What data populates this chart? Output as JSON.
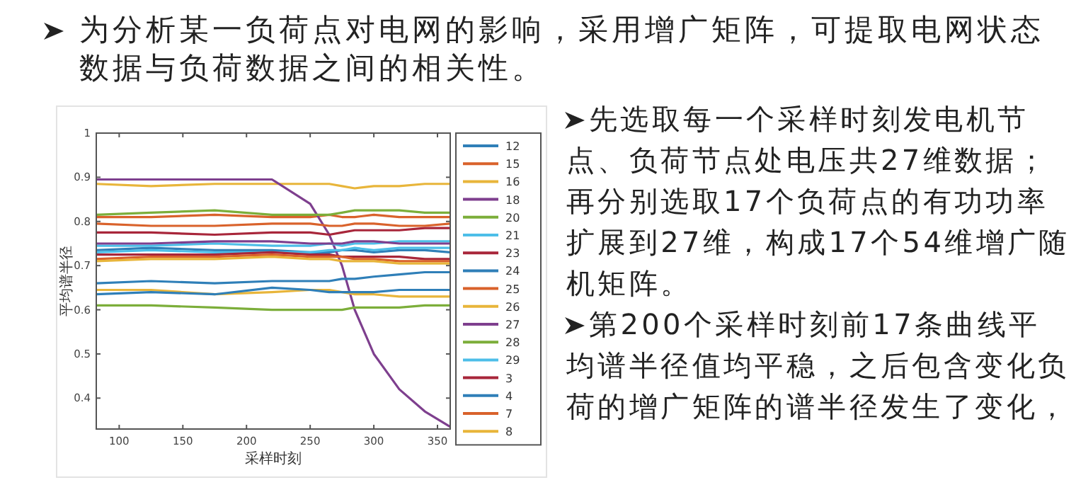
{
  "chart_data": {
    "type": "line",
    "title": "为分析某一负荷点对电网的影响，采用增广矩阵，可提取电网状态数据与负荷数据之间的相关性。",
    "annotations": [
      "先选取每一个采样时刻发电机节点、负荷节点处电压共27维数据；再分别选取17个负荷点的有功功率扩展到27维，构成17个54维增广随机矩阵。",
      "第200个采样时刻前17条曲线平均谱半径值均平稳，之后包含变化负荷的增广矩阵的谱半径发生了变化，"
    ],
    "xlabel": "采样时刻",
    "ylabel": "平均谱半径",
    "x": [
      82,
      125,
      175,
      220,
      250,
      265,
      275,
      285,
      300,
      320,
      340,
      360
    ],
    "xlim": [
      82,
      360
    ],
    "ylim": [
      0.33,
      1
    ],
    "xticks": [
      100,
      150,
      200,
      250,
      300,
      350
    ],
    "yticks": [
      0.4,
      0.5,
      0.6,
      0.7,
      0.8,
      0.9,
      1
    ],
    "legend": "right",
    "grid": false,
    "line_style": "solid",
    "marker": "none",
    "series": [
      {
        "name": "12",
        "color": "#2f7fb8",
        "values": [
          0.735,
          0.74,
          0.735,
          0.735,
          0.73,
          0.73,
          0.735,
          0.735,
          0.73,
          0.735,
          0.735,
          0.73
        ]
      },
      {
        "name": "15",
        "color": "#d9622b",
        "values": [
          0.81,
          0.81,
          0.815,
          0.81,
          0.81,
          0.815,
          0.81,
          0.81,
          0.815,
          0.81,
          0.81,
          0.81
        ]
      },
      {
        "name": "16",
        "color": "#e8b53a",
        "values": [
          0.885,
          0.88,
          0.885,
          0.885,
          0.885,
          0.885,
          0.88,
          0.875,
          0.88,
          0.88,
          0.885,
          0.885
        ]
      },
      {
        "name": "18",
        "color": "#7e3f8e",
        "values": [
          0.895,
          0.895,
          0.895,
          0.895,
          0.84,
          0.77,
          0.7,
          0.6,
          0.5,
          0.42,
          0.37,
          0.335
        ]
      },
      {
        "name": "20",
        "color": "#7cae3a",
        "values": [
          0.815,
          0.82,
          0.825,
          0.815,
          0.815,
          0.815,
          0.82,
          0.825,
          0.825,
          0.825,
          0.82,
          0.82
        ]
      },
      {
        "name": "21",
        "color": "#4dbee8",
        "values": [
          0.745,
          0.745,
          0.75,
          0.745,
          0.745,
          0.75,
          0.745,
          0.75,
          0.75,
          0.755,
          0.755,
          0.755
        ]
      },
      {
        "name": "23",
        "color": "#a8263a",
        "values": [
          0.775,
          0.775,
          0.77,
          0.775,
          0.775,
          0.77,
          0.775,
          0.78,
          0.78,
          0.78,
          0.785,
          0.785
        ]
      },
      {
        "name": "24",
        "color": "#2f7fb8",
        "values": [
          0.66,
          0.665,
          0.66,
          0.665,
          0.665,
          0.665,
          0.67,
          0.67,
          0.675,
          0.68,
          0.685,
          0.685
        ]
      },
      {
        "name": "25",
        "color": "#d9622b",
        "values": [
          0.795,
          0.79,
          0.79,
          0.795,
          0.795,
          0.79,
          0.79,
          0.795,
          0.795,
          0.79,
          0.79,
          0.795
        ]
      },
      {
        "name": "26",
        "color": "#e8b53a",
        "values": [
          0.645,
          0.645,
          0.635,
          0.64,
          0.645,
          0.645,
          0.64,
          0.635,
          0.635,
          0.63,
          0.63,
          0.63
        ]
      },
      {
        "name": "27",
        "color": "#7e3f8e",
        "values": [
          0.75,
          0.75,
          0.755,
          0.755,
          0.75,
          0.75,
          0.75,
          0.755,
          0.755,
          0.75,
          0.75,
          0.75
        ]
      },
      {
        "name": "28",
        "color": "#7cae3a",
        "values": [
          0.61,
          0.61,
          0.605,
          0.6,
          0.6,
          0.6,
          0.6,
          0.605,
          0.605,
          0.605,
          0.61,
          0.61
        ]
      },
      {
        "name": "29",
        "color": "#4dbee8",
        "values": [
          0.73,
          0.735,
          0.73,
          0.73,
          0.73,
          0.735,
          0.735,
          0.74,
          0.735,
          0.74,
          0.74,
          0.74
        ]
      },
      {
        "name": "3",
        "color": "#a8263a",
        "values": [
          0.725,
          0.725,
          0.725,
          0.73,
          0.725,
          0.725,
          0.72,
          0.72,
          0.72,
          0.72,
          0.715,
          0.715
        ]
      },
      {
        "name": "4",
        "color": "#2f7fb8",
        "values": [
          0.635,
          0.64,
          0.635,
          0.65,
          0.645,
          0.64,
          0.64,
          0.64,
          0.64,
          0.645,
          0.645,
          0.645
        ]
      },
      {
        "name": "7",
        "color": "#d9622b",
        "values": [
          0.715,
          0.72,
          0.72,
          0.725,
          0.72,
          0.72,
          0.72,
          0.715,
          0.715,
          0.71,
          0.71,
          0.71
        ]
      },
      {
        "name": "8",
        "color": "#e8b53a",
        "values": [
          0.71,
          0.715,
          0.715,
          0.72,
          0.715,
          0.715,
          0.71,
          0.71,
          0.71,
          0.705,
          0.705,
          0.705
        ]
      }
    ]
  }
}
